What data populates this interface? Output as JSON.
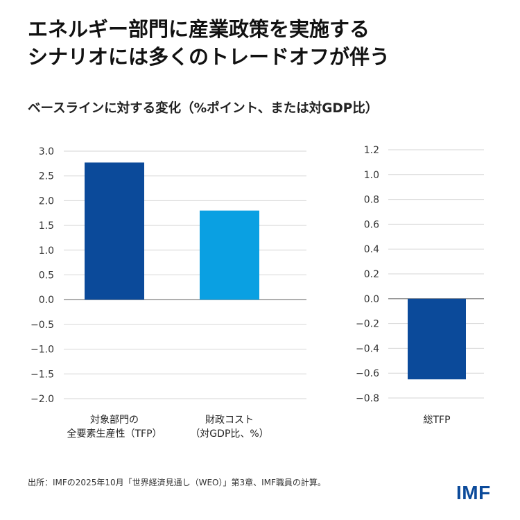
{
  "title_lines": [
    "エネルギー部門に産業政策を実施する",
    "シナリオには多くのトレードオフが伴う"
  ],
  "subtitle": "ベースラインに対する変化（%ポイント、または対GDP比）",
  "source": "出所：IMFの2025年10月「世界経済見通し（WEO）」第3章、IMF職員の計算。",
  "logo": "IMF",
  "chart_data": [
    {
      "type": "bar",
      "categories": [
        [
          "対象部門の",
          "全要素生産性（TFP）"
        ],
        [
          "財政コスト",
          "（対GDP比、%）"
        ]
      ],
      "values": [
        2.77,
        1.8
      ],
      "colors": [
        "#0b4a9a",
        "#0aa0e2"
      ],
      "ylim": [
        -2.0,
        3.0
      ],
      "yticks": [
        3.0,
        2.5,
        2.0,
        1.5,
        1.0,
        0.5,
        0.0,
        -0.5,
        -1.0,
        -1.5,
        -2.0
      ],
      "ytick_labels": [
        "3.0",
        "2.5",
        "2.0",
        "1.5",
        "1.0",
        "0.5",
        "0.0",
        "−0.5",
        "−1.0",
        "−1.5",
        "−2.0"
      ],
      "grid": true
    },
    {
      "type": "bar",
      "categories": [
        [
          "総TFP"
        ]
      ],
      "values": [
        -0.65
      ],
      "colors": [
        "#0b4a9a"
      ],
      "ylim": [
        -0.8,
        1.2
      ],
      "yticks": [
        1.2,
        1.0,
        0.8,
        0.6,
        0.4,
        0.2,
        0.0,
        -0.2,
        -0.4,
        -0.6,
        -0.8
      ],
      "ytick_labels": [
        "1.2",
        "1.0",
        "0.8",
        "0.6",
        "0.4",
        "0.2",
        "0.0",
        "−0.2",
        "−0.4",
        "−0.6",
        "−0.8"
      ],
      "grid": true
    }
  ]
}
